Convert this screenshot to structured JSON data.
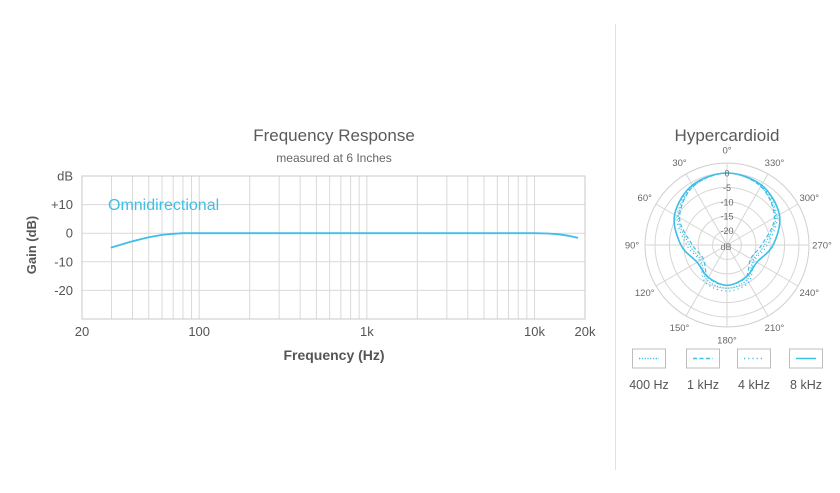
{
  "colors": {
    "accent": "#3dbfe6",
    "grid": "#d9d9d9",
    "frame": "#c8c8c8",
    "text_dark": "#555555",
    "text_mid": "#666666"
  },
  "frequency_response": {
    "title": "Frequency Response",
    "subtitle": "measured at 6 Inches",
    "series_label": "Omnidirectional",
    "xlabel": "Frequency (Hz)",
    "ylabel": "Gain (dB)",
    "y_unit": "dB"
  },
  "polar": {
    "title": "Hypercardioid",
    "unit": "dB",
    "ring_labels": [
      "0",
      "-5",
      "-10",
      "-15",
      "-20"
    ],
    "angle_labels": [
      "0°",
      "30°",
      "60°",
      "90°",
      "120°",
      "150°",
      "180°",
      "210°",
      "240°",
      "270°",
      "300°",
      "330°"
    ],
    "legend": [
      {
        "label": "400 Hz",
        "style": "dotted-dense"
      },
      {
        "label": "1 kHz",
        "style": "dashed"
      },
      {
        "label": "4 kHz",
        "style": "dotted-sparse"
      },
      {
        "label": "8 kHz",
        "style": "solid"
      }
    ]
  },
  "chart_data": [
    {
      "type": "line",
      "title": "Frequency Response",
      "subtitle": "measured at 6 Inches",
      "xlabel": "Frequency (Hz)",
      "ylabel": "Gain (dB)",
      "x_scale": "log",
      "xlim": [
        20,
        20000
      ],
      "ylim": [
        -30,
        20
      ],
      "x_ticks": [
        {
          "value": 20,
          "label": "20"
        },
        {
          "value": 100,
          "label": "100"
        },
        {
          "value": 1000,
          "label": "1k"
        },
        {
          "value": 10000,
          "label": "10k"
        },
        {
          "value": 20000,
          "label": "20k"
        }
      ],
      "y_ticks": [
        {
          "value": 20,
          "label": "dB"
        },
        {
          "value": 10,
          "label": "+10"
        },
        {
          "value": 0,
          "label": "0"
        },
        {
          "value": -10,
          "label": "-10"
        },
        {
          "value": -20,
          "label": "-20"
        }
      ],
      "grid": true,
      "series": [
        {
          "name": "Omnidirectional",
          "x": [
            30,
            40,
            50,
            60,
            70,
            80,
            100,
            1000,
            10000,
            12000,
            14000,
            16000,
            18000
          ],
          "y": [
            -5,
            -2.8,
            -1.4,
            -0.6,
            -0.2,
            0,
            0,
            0,
            0,
            -0.1,
            -0.4,
            -0.9,
            -1.6
          ]
        }
      ]
    },
    {
      "type": "polar",
      "title": "Hypercardioid",
      "unit": "dB",
      "r_range": [
        -25,
        0
      ],
      "r_ticks": [
        0,
        -5,
        -10,
        -15,
        -20
      ],
      "angles": [
        0,
        30,
        60,
        90,
        120,
        150,
        180,
        210,
        240,
        270,
        300,
        330
      ],
      "series": [
        {
          "name": "400 Hz",
          "values": [
            0,
            -1.5,
            -5.5,
            -12,
            -14.5,
            -11,
            -10,
            -11,
            -14.5,
            -12,
            -5.5,
            -1.5
          ]
        },
        {
          "name": "1 kHz",
          "values": [
            0,
            -1.5,
            -6,
            -13,
            -15.5,
            -12,
            -11,
            -12,
            -15.5,
            -13,
            -6,
            -1.5
          ]
        },
        {
          "name": "4 kHz",
          "values": [
            0,
            -1.2,
            -5,
            -11,
            -14,
            -10,
            -9,
            -10,
            -14,
            -11,
            -5,
            -1.2
          ]
        },
        {
          "name": "8 kHz",
          "values": [
            0,
            -1,
            -4,
            -9,
            -13,
            -12,
            -11,
            -12,
            -13,
            -9,
            -4,
            -1
          ]
        }
      ]
    }
  ]
}
